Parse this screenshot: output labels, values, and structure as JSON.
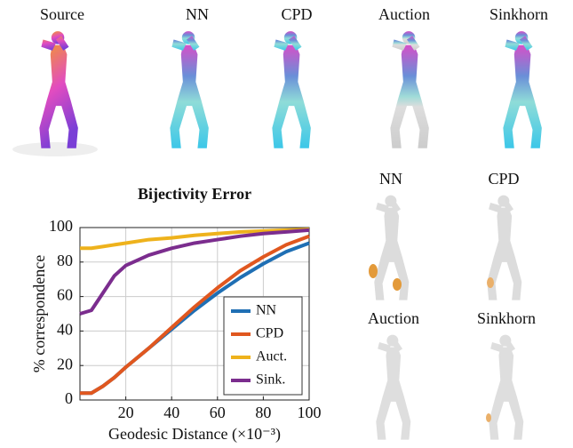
{
  "figure": {
    "top_labels": [
      "Source",
      "NN",
      "CPD",
      "Auction",
      "Sinkhorn"
    ],
    "right_labels": [
      "NN",
      "CPD",
      "Auction",
      "Sinkhorn"
    ]
  },
  "chart_data": {
    "type": "line",
    "title": "Bijectivity Error",
    "x_label": "Geodesic Distance (×10⁻³)",
    "y_label": "% correspondence",
    "x": [
      0,
      5,
      10,
      15,
      20,
      30,
      40,
      50,
      60,
      70,
      80,
      90,
      100
    ],
    "series": [
      {
        "name": "NN",
        "color": "#1f6fb4",
        "values": [
          4,
          4,
          8,
          13,
          19,
          30,
          41,
          52,
          62,
          71,
          79,
          86,
          91
        ]
      },
      {
        "name": "CPD",
        "color": "#e0571f",
        "values": [
          4,
          4,
          8,
          13,
          19,
          30,
          42,
          54,
          65,
          75,
          83,
          90,
          95
        ]
      },
      {
        "name": "Auct.",
        "color": "#eeb21c",
        "values": [
          88,
          88,
          89,
          90,
          91,
          93,
          94,
          95.5,
          96.5,
          97.5,
          98,
          98.5,
          99
        ]
      },
      {
        "name": "Sink.",
        "color": "#7b2d8e",
        "values": [
          50,
          52,
          62,
          72,
          78,
          84,
          88,
          91,
          93,
          95,
          96.5,
          97.5,
          98.5
        ]
      }
    ],
    "xlim": [
      0,
      100
    ],
    "ylim": [
      0,
      100
    ],
    "xticks": [
      20,
      40,
      60,
      80,
      100
    ],
    "yticks": [
      0,
      20,
      40,
      60,
      80,
      100
    ],
    "grid": true,
    "legend": "lower-right"
  }
}
